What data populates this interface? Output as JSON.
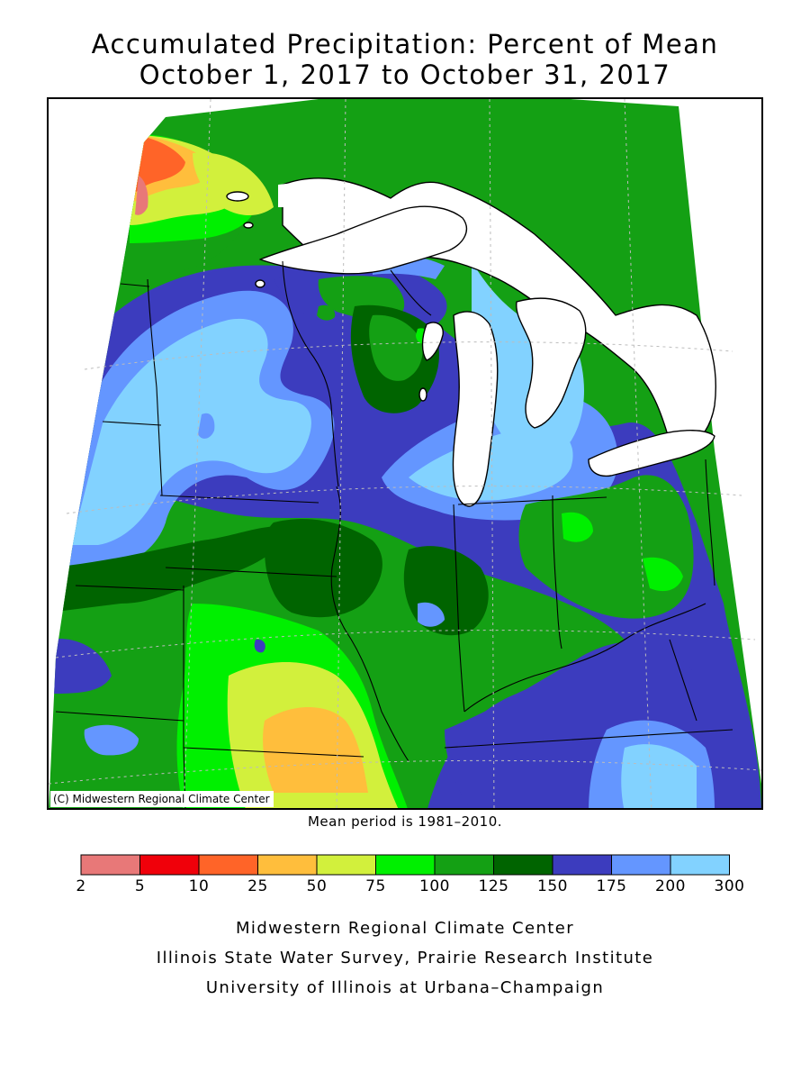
{
  "title": {
    "line1": "Accumulated Precipitation: Percent of Mean",
    "line2": "October 1, 2017 to October 31, 2017"
  },
  "copyright": "(C) Midwestern Regional Climate Center",
  "mean_period": "Mean period is 1981–2010.",
  "legend": {
    "ticks": [
      "2",
      "5",
      "10",
      "25",
      "50",
      "75",
      "100",
      "125",
      "150",
      "175",
      "200",
      "300"
    ],
    "bins": [
      {
        "range": "2-5",
        "color": "#e87878"
      },
      {
        "range": "5-10",
        "color": "#f0000a"
      },
      {
        "range": "10-25",
        "color": "#ff6428"
      },
      {
        "range": "25-50",
        "color": "#ffbe3c"
      },
      {
        "range": "50-75",
        "color": "#d2f03c"
      },
      {
        "range": "75-100",
        "color": "#00f000"
      },
      {
        "range": "100-125",
        "color": "#14a014"
      },
      {
        "range": "125-150",
        "color": "#006400"
      },
      {
        "range": "150-175",
        "color": "#3c3cbe"
      },
      {
        "range": "175-200",
        "color": "#6496ff"
      },
      {
        "range": "200-300",
        "color": "#82d2ff"
      }
    ]
  },
  "credits": {
    "line1": "Midwestern Regional Climate Center",
    "line2": "Illinois State Water Survey, Prairie Research Institute",
    "line3": "University of Illinois at Urbana–Champaign"
  }
}
